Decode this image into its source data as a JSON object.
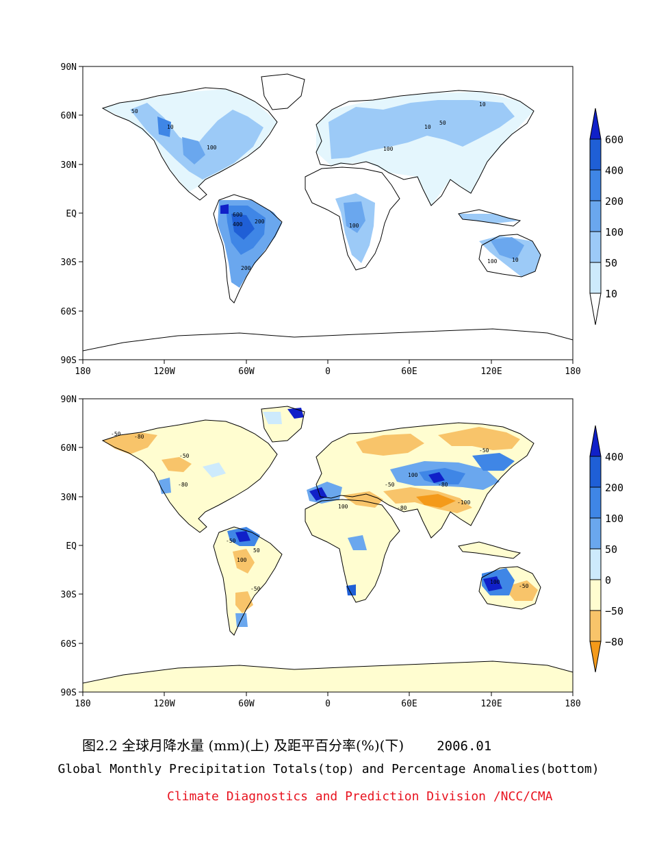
{
  "maps": [
    {
      "id": "totals",
      "lat_ticks": [
        "90N",
        "60N",
        "30N",
        "EQ",
        "30S",
        "60S",
        "90S"
      ],
      "lon_ticks": [
        "180",
        "120W",
        "60W",
        "0",
        "60E",
        "120E",
        "180"
      ],
      "colorbar": {
        "levels": [
          "600",
          "400",
          "200",
          "100",
          "50",
          "10"
        ],
        "colors": [
          "#1020c8",
          "#1f5fd6",
          "#3f86e6",
          "#6aa7ee",
          "#9ccaf7",
          "#cdeafc",
          "#ffffff"
        ]
      },
      "contour_labels": [
        "10",
        "50",
        "100",
        "200",
        "400",
        "600",
        "10",
        "50",
        "100",
        "10",
        "50",
        "100",
        "200",
        "10",
        "50",
        "100"
      ]
    },
    {
      "id": "anomalies",
      "lat_ticks": [
        "90N",
        "60N",
        "30N",
        "EQ",
        "30S",
        "60S",
        "90S"
      ],
      "lon_ticks": [
        "180",
        "120W",
        "60W",
        "0",
        "60E",
        "120E",
        "180"
      ],
      "colorbar": {
        "levels": [
          "400",
          "200",
          "100",
          "50",
          "0",
          "−50",
          "−80"
        ],
        "colors": [
          "#1020c8",
          "#1f5fd6",
          "#3f86e6",
          "#6aa7ee",
          "#cdeafc",
          "#fffdd0",
          "#f8c46a",
          "#f49a1a"
        ]
      },
      "contour_labels": [
        "-50",
        "-80",
        "-50",
        "-80",
        "-50",
        "50",
        "100",
        "-50",
        "100",
        "-80",
        "-100",
        "-50",
        "100",
        "-50",
        "-50",
        "50",
        "100",
        "-80"
      ]
    }
  ],
  "caption": {
    "chinese": "图2.2  全球月降水量 (mm)(上) 及距平百分率(%)(下)",
    "date": "2006.01",
    "english": "Global Monthly Precipitation Totals(top) and Percentage Anomalies(bottom)",
    "credit": "Climate Diagnostics and Prediction Division /NCC/CMA"
  }
}
